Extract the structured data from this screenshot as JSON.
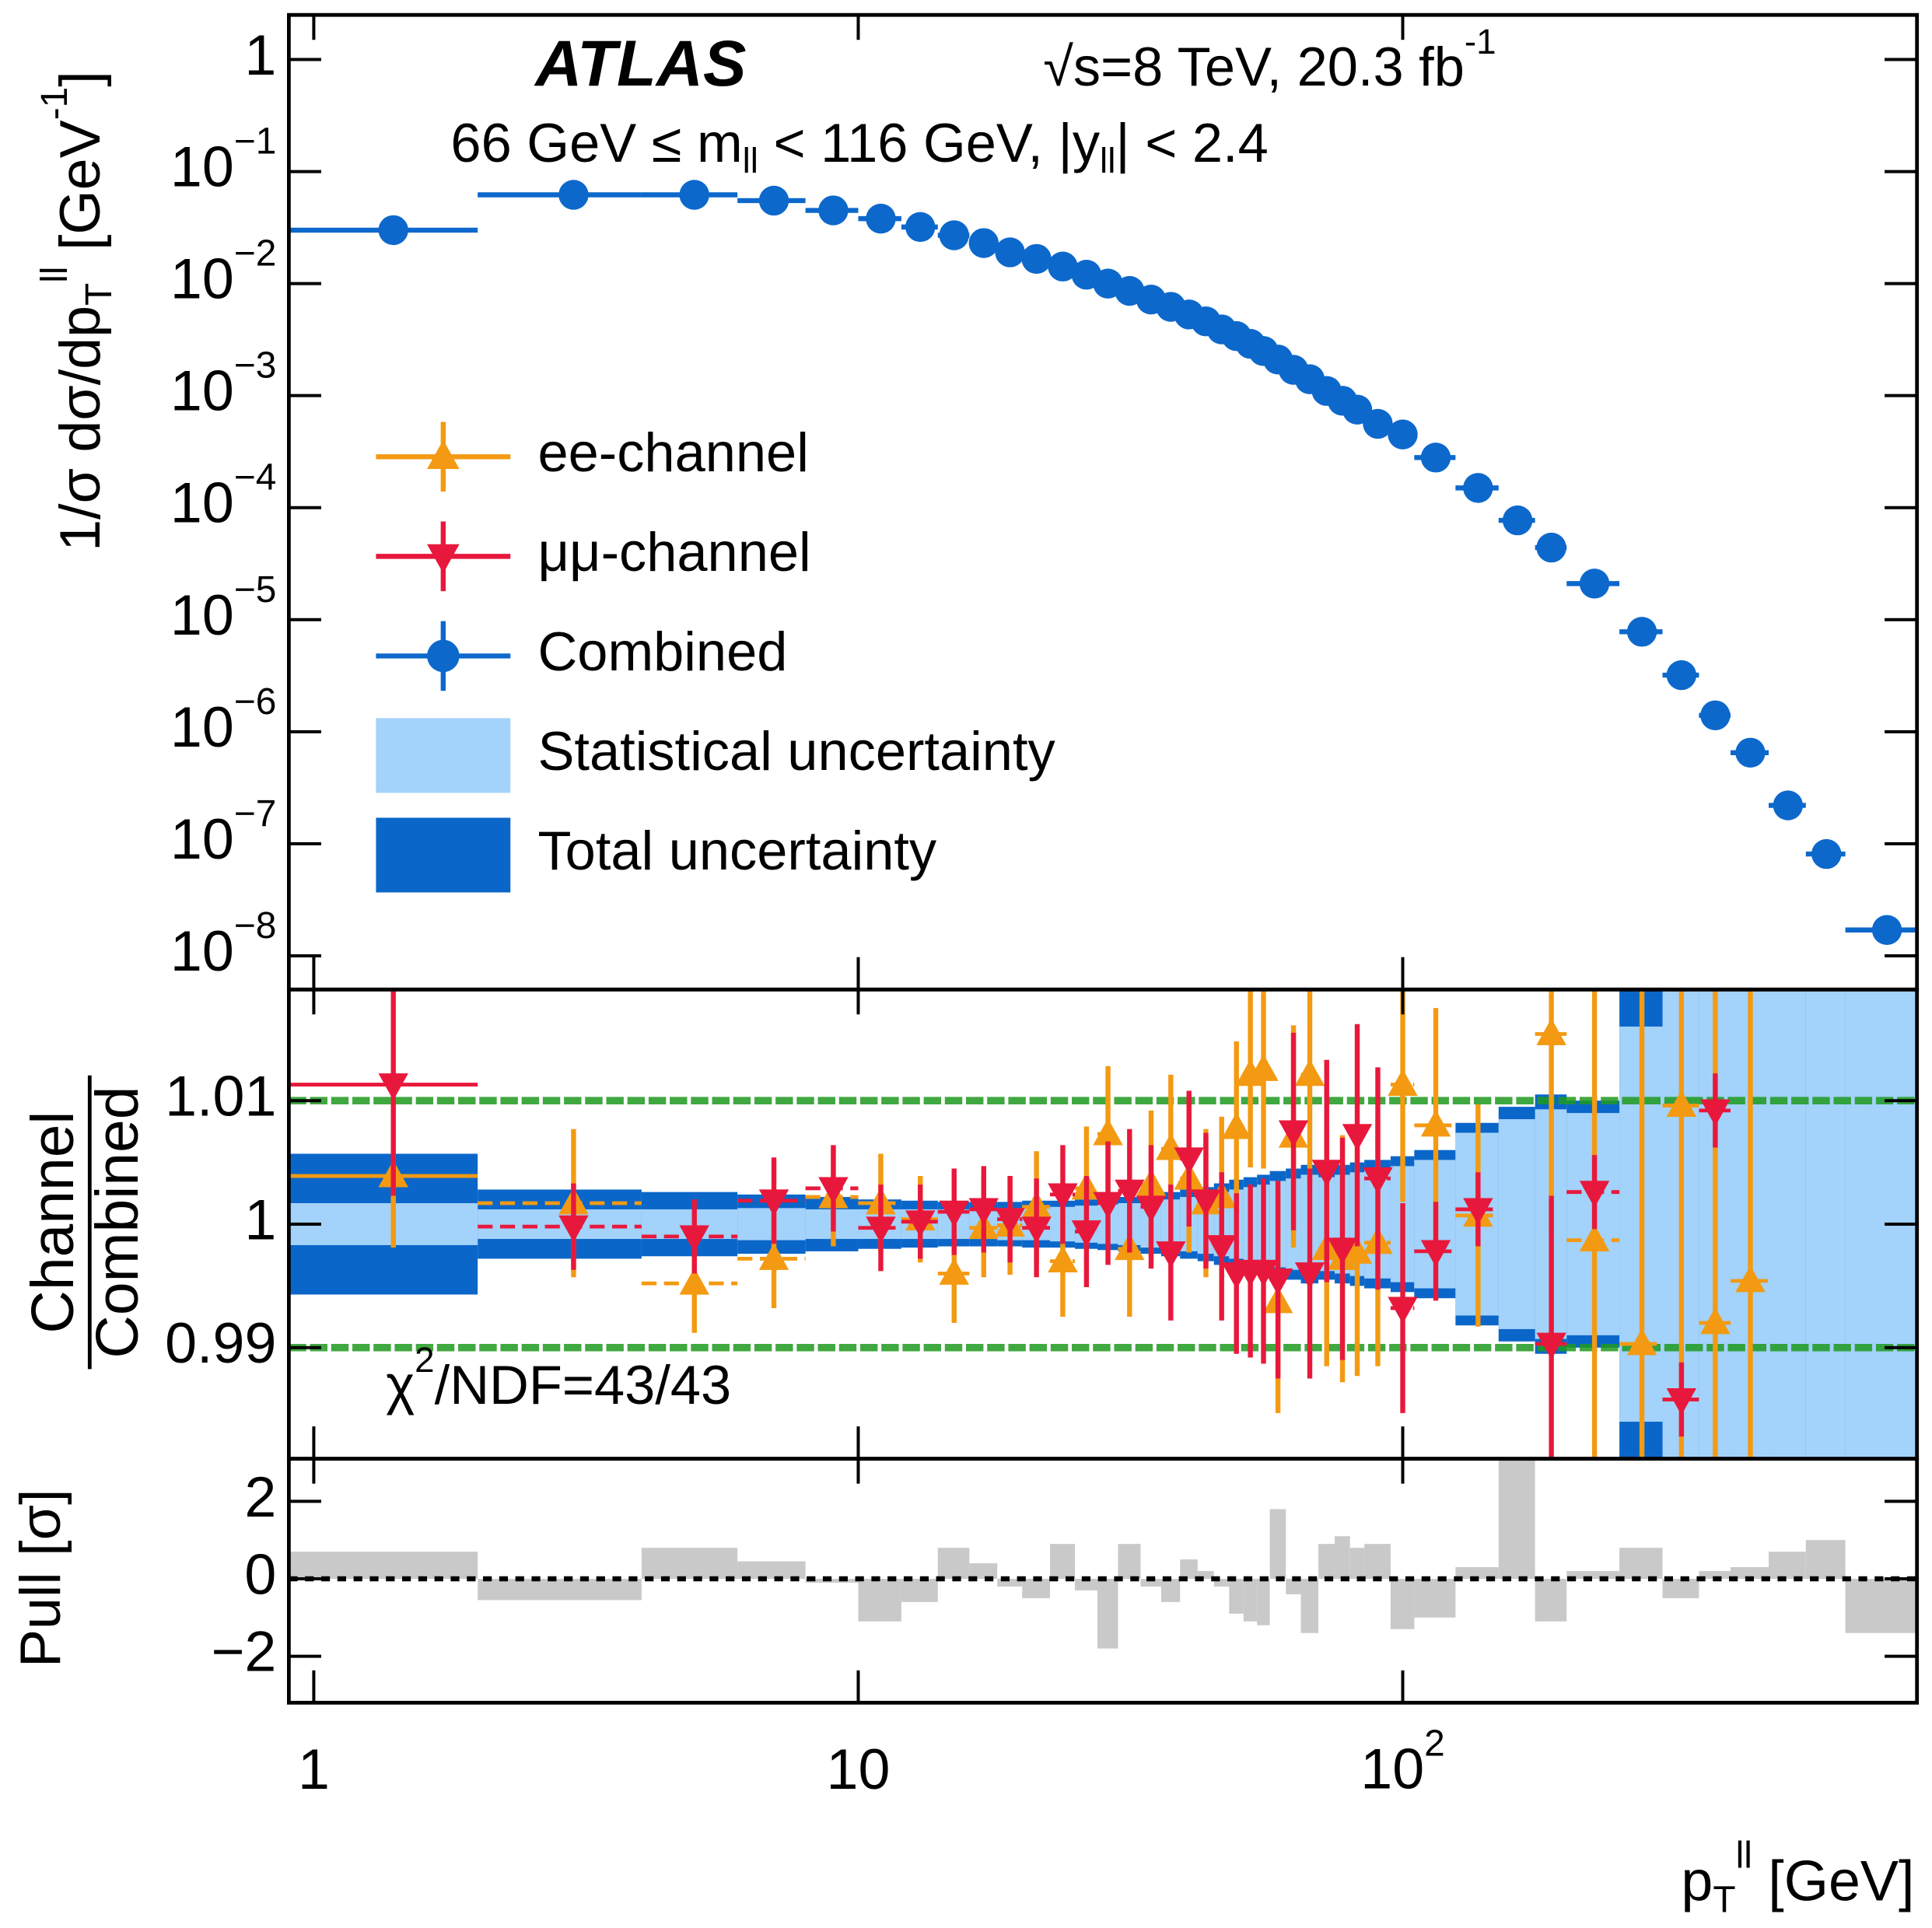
{
  "chart_data": [
    {
      "type": "scatter",
      "log_x": true,
      "log_y": true,
      "xlim": [
        0.9,
        880
      ],
      "ylim": [
        5e-09,
        2.5
      ],
      "yticks": [
        1,
        {
          "value": 0.1,
          "label": "10",
          "exponent": "−1"
        },
        {
          "value": 0.01,
          "label": "10",
          "exponent": "−2"
        },
        {
          "value": 0.001,
          "label": "10",
          "exponent": "−3"
        },
        {
          "value": 0.0001,
          "label": "10",
          "exponent": "−4"
        },
        {
          "value": 1e-05,
          "label": "10",
          "exponent": "−5"
        },
        {
          "value": 1e-06,
          "label": "10",
          "exponent": "−6"
        },
        {
          "value": 1e-07,
          "label": "10",
          "exponent": "−7"
        },
        {
          "value": 1e-08,
          "label": "10",
          "exponent": "−8"
        }
      ],
      "ylabel": [
        {
          "text": "1/σ dσ/dp"
        },
        {
          "text": "T",
          "shift": "sub"
        },
        {
          "text": "ll",
          "shift": "super"
        },
        {
          "text": "  [GeV"
        },
        {
          "text": "-1",
          "shift": "super"
        },
        {
          "text": "]"
        }
      ],
      "annotations": [
        [
          {
            "text": "ATLAS",
            "style": "bold-italic"
          }
        ],
        [
          {
            "text": "√s=8 TeV, 20.3 fb"
          },
          {
            "text": "-1",
            "shift": "super"
          }
        ],
        [
          {
            "text": "66 GeV ≤ m"
          },
          {
            "text": "ll",
            "shift": "sub"
          },
          {
            "text": " < 116 GeV, |y"
          },
          {
            "text": "ll",
            "shift": "sub"
          },
          {
            "text": "| < 2.4"
          }
        ]
      ],
      "x": [
        1.4,
        3,
        5,
        7,
        9,
        11,
        13,
        15,
        17,
        19,
        21.25,
        23.75,
        26.25,
        28.75,
        31.5,
        34.5,
        37.5,
        40.5,
        43.5,
        46.5,
        49.5,
        52.5,
        55.5,
        59,
        63,
        67.5,
        72.5,
        77.5,
        82.5,
        90,
        100,
        115,
        137.5,
        162.5,
        187.5,
        225,
        275,
        325,
        375,
        435,
        510,
        600,
        775
      ],
      "bins": [
        0,
        2,
        4,
        6,
        8,
        10,
        12,
        14,
        16,
        18,
        20,
        22.5,
        25,
        27.5,
        30,
        33,
        36,
        39,
        42,
        45,
        48,
        51,
        54,
        57,
        61,
        65,
        70,
        75,
        80,
        85,
        95,
        105,
        125,
        150,
        175,
        200,
        250,
        300,
        350,
        400,
        470,
        550,
        650,
        900
      ],
      "series": [
        {
          "name": "Combined",
          "color": "#0d68cc",
          "marker": "circle",
          "values": [
            0.03,
            0.062,
            0.062,
            0.055,
            0.045,
            0.038,
            0.032,
            0.027,
            0.023,
            0.019,
            0.0166,
            0.0142,
            0.012,
            0.01,
            0.0086,
            0.0072,
            0.0062,
            0.0053,
            0.0046,
            0.0039,
            0.0034,
            0.0029,
            0.0025,
            0.0021,
            0.0017,
            0.0014,
            0.0011,
            0.0009,
            0.00075,
            0.00056,
            0.00045,
            0.00028,
            0.00015,
            7.7e-05,
            4.4e-05,
            2.1e-05,
            7.8e-06,
            3.2e-06,
            1.4e-06,
            6.5e-07,
            2.2e-07,
            8.1e-08,
            1.7e-08
          ]
        }
      ]
    },
    {
      "type": "errorbar",
      "ylim": [
        0.981,
        1.019
      ],
      "yticks": [
        0.99,
        1,
        1.01
      ],
      "ylabel": [
        "Channel",
        "Combined"
      ],
      "annotations": [
        [
          {
            "text": "χ"
          },
          {
            "text": "2",
            "shift": "super"
          },
          {
            "text": "/NDF=43/43"
          }
        ]
      ],
      "series": [
        {
          "name": "ee-channel",
          "color": "#f39a12",
          "marker": "triangle-up",
          "values": [
            1.0039,
            1.0017,
            0.9952,
            0.9972,
            1.0022,
            1.0017,
            1.0004,
            0.996,
            0.9997,
            0.9999,
            1.0014,
            0.997,
            1.0029,
            1.0073,
            0.998,
            1.0032,
            1.0061,
            1.0037,
            1.0017,
            1.0022,
            1.0078,
            1.0121,
            1.0125,
            0.9937,
            1.0071,
            1.0121,
            0.998,
            0.9972,
            0.9977,
            0.9985,
            1.0113,
            1.008,
            1.0007,
            null,
            1.0154,
            0.9987,
            0.9903,
            1.0096,
            0.992,
            0.9954,
            null,
            null,
            null
          ],
          "errors": [
            0.0058,
            0.006,
            0.004,
            0.004,
            0.004,
            0.004,
            0.0035,
            0.004,
            0.004,
            0.004,
            0.0045,
            0.0045,
            0.005,
            0.0055,
            0.0055,
            0.006,
            0.006,
            0.006,
            0.006,
            0.0065,
            0.007,
            0.0075,
            0.008,
            0.009,
            0.009,
            0.009,
            0.0095,
            0.01,
            0.01,
            0.01,
            0.0095,
            0.0095,
            0.009,
            null,
            0.016,
            0.03,
            0.03,
            0.03,
            0.03,
            0.03,
            null,
            null,
            null
          ]
        },
        {
          "name": "μμ-channel",
          "color": "#e8183c",
          "marker": "triangle-down",
          "values": [
            1.0113,
            0.9998,
            0.999,
            1.0019,
            1.0029,
            0.9997,
            1.0002,
            1.001,
            1.0012,
            1.0004,
            0.9997,
            1.0024,
            0.9994,
            1.0017,
            1.0027,
            1.0014,
            0.9977,
            1.0053,
            1.0019,
            0.9982,
            0.996,
            0.9962,
            0.9962,
            0.9955,
            1.0075,
            0.996,
            1.0043,
            0.998,
            1.0072,
            1.0037,
            0.9932,
            0.9978,
            1.0012,
            null,
            0.9903,
            1.0026,
            null,
            0.9858,
            1.0092,
            null,
            null,
            null,
            null
          ],
          "errors": [
            0.009,
            0.0035,
            0.003,
            0.0035,
            0.0035,
            0.0035,
            0.003,
            0.0035,
            0.0035,
            0.0035,
            0.004,
            0.004,
            0.0045,
            0.005,
            0.005,
            0.005,
            0.0055,
            0.0055,
            0.0055,
            0.006,
            0.0065,
            0.007,
            0.0075,
            0.008,
            0.008,
            0.0085,
            0.009,
            0.009,
            0.009,
            0.009,
            0.0085,
            0.004,
            0.003,
            null,
            0.012,
            0.003,
            null,
            0.003,
            0.003,
            null,
            null,
            null,
            null
          ]
        }
      ],
      "bands": [
        {
          "name": "Statistical uncertainty",
          "color": "#a3d2fa",
          "values": [
            0.0017,
            0.0012,
            0.0012,
            0.0013,
            0.0012,
            0.0012,
            0.0012,
            0.0012,
            0.0012,
            0.0013,
            0.0013,
            0.0014,
            0.0015,
            0.0016,
            0.0017,
            0.0019,
            0.002,
            0.0022,
            0.0024,
            0.0026,
            0.0028,
            0.003,
            0.0032,
            0.0035,
            0.0037,
            0.004,
            0.0038,
            0.004,
            0.0042,
            0.0044,
            0.0047,
            0.0052,
            0.0074,
            0.0085,
            0.0093,
            0.009,
            0.016,
            0.025,
            0.025,
            0.03,
            0.035,
            0.045,
            0.055
          ]
        },
        {
          "name": "Total uncertainty",
          "color": "#0b66c9",
          "values": [
            0.0057,
            0.0028,
            0.0026,
            0.0024,
            0.0022,
            0.002,
            0.0019,
            0.0018,
            0.0018,
            0.0018,
            0.0019,
            0.0019,
            0.002,
            0.0021,
            0.0022,
            0.0024,
            0.0026,
            0.0028,
            0.003,
            0.0033,
            0.0036,
            0.0038,
            0.004,
            0.0043,
            0.0045,
            0.0048,
            0.0045,
            0.0048,
            0.005,
            0.0052,
            0.0055,
            0.006,
            0.0082,
            0.0095,
            0.0105,
            0.01,
            0.025,
            0.03,
            0.03,
            0.035,
            0.04,
            0.05,
            0.06
          ]
        }
      ]
    },
    {
      "type": "histogram",
      "color": "#c9c9c9",
      "ylim": [
        -3.2,
        3.1
      ],
      "yticks": [
        {
          "value": -2,
          "label": "−2"
        },
        0,
        2
      ],
      "ylabel": "Pull [σ]",
      "xticks": [
        1,
        10,
        {
          "value": 100,
          "label": "10",
          "exponent": "2"
        }
      ],
      "xlabel": [
        {
          "text": "p"
        },
        {
          "text": "T",
          "shift": "sub"
        },
        {
          "text": "ll",
          "shift": "super"
        },
        {
          "text": " [GeV]"
        }
      ],
      "values": [
        0.7,
        -0.55,
        0.8,
        0.45,
        -0.1,
        -1.1,
        -0.6,
        0.8,
        0.4,
        -0.2,
        -0.5,
        0.9,
        -0.3,
        -1.8,
        0.9,
        -0.2,
        -0.6,
        0.5,
        0.2,
        -0.2,
        -0.9,
        -1.1,
        -1.2,
        1.8,
        -0.4,
        -1.4,
        0.9,
        1.1,
        0.8,
        0.9,
        -1.3,
        -1.0,
        0.3,
        3.1,
        -1.1,
        0.2,
        0.8,
        -0.5,
        0.2,
        0.3,
        0.7,
        1.0,
        -1.4
      ]
    }
  ]
}
